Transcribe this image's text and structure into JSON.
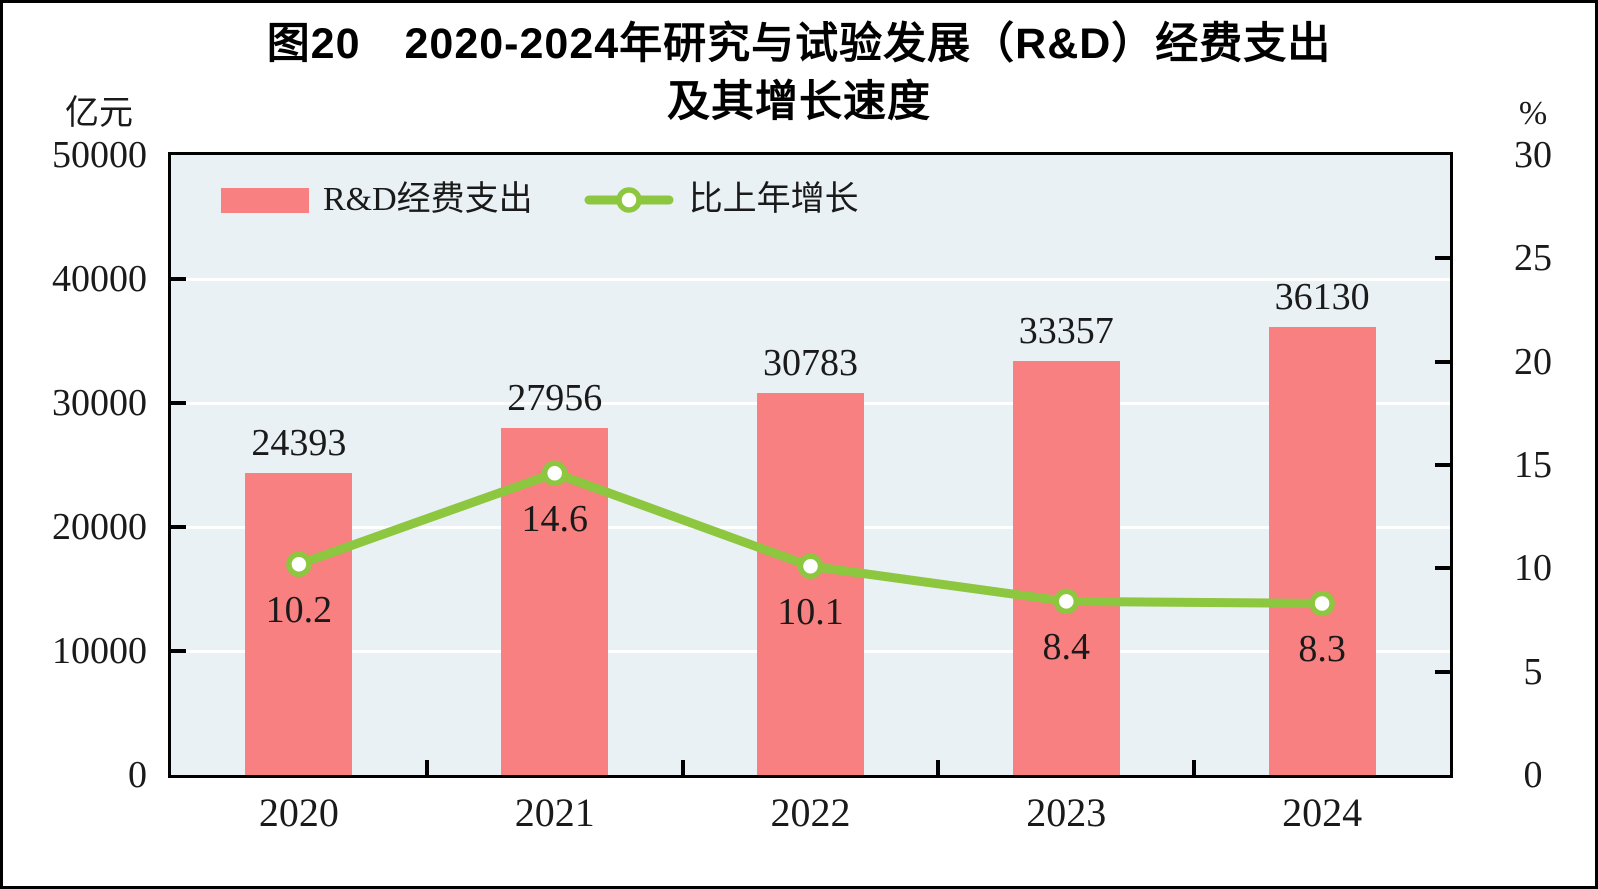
{
  "figure": {
    "title_line1": "图20　2020-2024年研究与试验发展（R&D）经费支出",
    "title_line2": "及其增长速度",
    "left_axis_unit": "亿元",
    "right_axis_unit": "%"
  },
  "legend": {
    "bar_label": "R&D经费支出",
    "line_label": "比上年增长"
  },
  "chart_data": {
    "type": "bar+line combo",
    "title": "图20 2020-2024年研究与试验发展（R&D）经费支出及其增长速度",
    "categories": [
      "2020",
      "2021",
      "2022",
      "2023",
      "2024"
    ],
    "series": [
      {
        "name": "R&D经费支出",
        "type": "bar",
        "axis": "left",
        "values": [
          24393,
          27956,
          30783,
          33357,
          36130
        ]
      },
      {
        "name": "比上年增长",
        "type": "line",
        "axis": "right",
        "values": [
          10.2,
          14.6,
          10.1,
          8.4,
          8.3
        ]
      }
    ],
    "left_axis": {
      "label": "亿元",
      "min": 0,
      "max": 50000,
      "tick_step": 10000,
      "ticks": [
        0,
        10000,
        20000,
        30000,
        40000,
        50000
      ]
    },
    "right_axis": {
      "label": "%",
      "min": 0,
      "max": 30,
      "tick_step": 5,
      "ticks": [
        0,
        5,
        10,
        15,
        20,
        25,
        30
      ]
    },
    "grid": "horizontal white gridlines at left-axis ticks, plot background light blue",
    "legend_position": "top-left inside plot area",
    "colors": {
      "bar": "#F98080",
      "line": "#8DC63F",
      "marker_fill": "#FFFFFF",
      "plot_bg": "#E9F1F4",
      "grid": "#FFFFFF",
      "frame": "#000000",
      "text": "#1A1A1A"
    }
  }
}
